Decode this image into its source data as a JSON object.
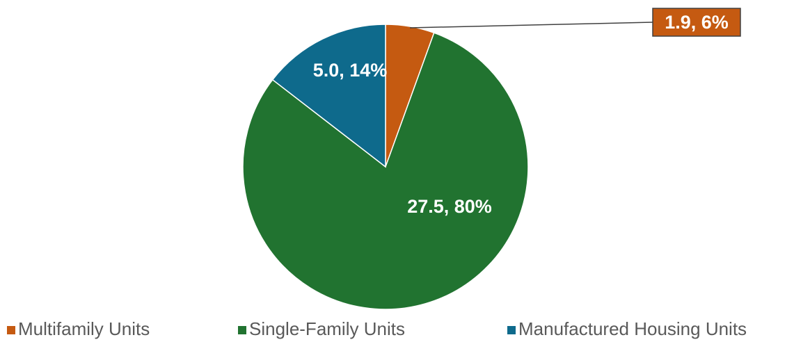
{
  "chart_data": {
    "type": "pie",
    "categories": [
      "Multifamily Units",
      "Single-Family Units",
      "Manufactured Housing Units"
    ],
    "values": [
      1.9,
      27.5,
      5.0
    ],
    "percentages": [
      6,
      80,
      14
    ],
    "data_labels": [
      "1.9, 6%",
      "27.5, 80%",
      "5.0, 14%"
    ],
    "colors": [
      "#c55a11",
      "#217330",
      "#0e6a8c"
    ],
    "start_angle_deg": 0,
    "direction": "clockwise",
    "legend_position": "bottom",
    "outside_label_index": 0
  },
  "legend": {
    "items": [
      {
        "label": "Multifamily Units",
        "color": "#c55a11"
      },
      {
        "label": "Single-Family Units",
        "color": "#217330"
      },
      {
        "label": "Manufactured Housing Units",
        "color": "#0e6a8c"
      }
    ]
  }
}
